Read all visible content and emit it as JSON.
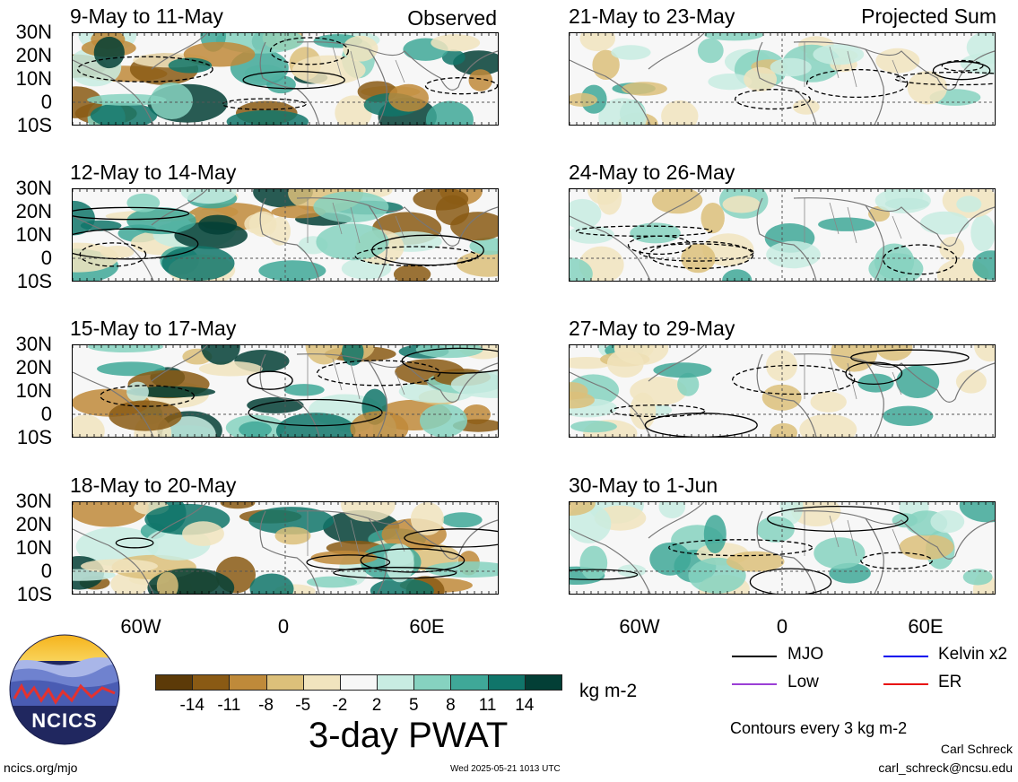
{
  "panels_left": [
    {
      "title": "9-May to 11-May",
      "tag": "Observed"
    },
    {
      "title": "12-May to 14-May",
      "tag": ""
    },
    {
      "title": "15-May to 17-May",
      "tag": ""
    },
    {
      "title": "18-May to 20-May",
      "tag": ""
    }
  ],
  "panels_right": [
    {
      "title": "21-May to 23-May",
      "tag": "Projected Sum"
    },
    {
      "title": "24-May to 26-May",
      "tag": ""
    },
    {
      "title": "27-May to 29-May",
      "tag": ""
    },
    {
      "title": "30-May to 1-Jun",
      "tag": ""
    }
  ],
  "lat_labels": [
    "30N",
    "20N",
    "10N",
    "0",
    "10S"
  ],
  "lon_labels": [
    "60W",
    "0",
    "60E"
  ],
  "colorbar": {
    "ticks": [
      "-14",
      "-11",
      "-8",
      "-5",
      "-2",
      "2",
      "5",
      "8",
      "11",
      "14"
    ],
    "colors": [
      "#5c3a08",
      "#8a5a14",
      "#bf8a3a",
      "#dcc07a",
      "#f1e4be",
      "#f7f7f7",
      "#c8ece2",
      "#86d2c0",
      "#3fa898",
      "#10756a",
      "#033f36"
    ],
    "units": "kg m-2",
    "title": "3-day PWAT"
  },
  "legend": {
    "items": [
      {
        "label": "MJO",
        "color": "#000000"
      },
      {
        "label": "Kelvin x2",
        "color": "#0000ee"
      },
      {
        "label": "Low",
        "color": "#9b3fd6"
      },
      {
        "label": "ER",
        "color": "#e81010"
      }
    ],
    "note": "Contours every 3 kg m-2"
  },
  "logo_text": "NCICS",
  "footer": {
    "left": "ncics.org/mjo",
    "center": "Wed 2025-05-21 1013 UTC",
    "author": "Carl Schreck",
    "email": "carl_schreck@ncsu.edu"
  }
}
